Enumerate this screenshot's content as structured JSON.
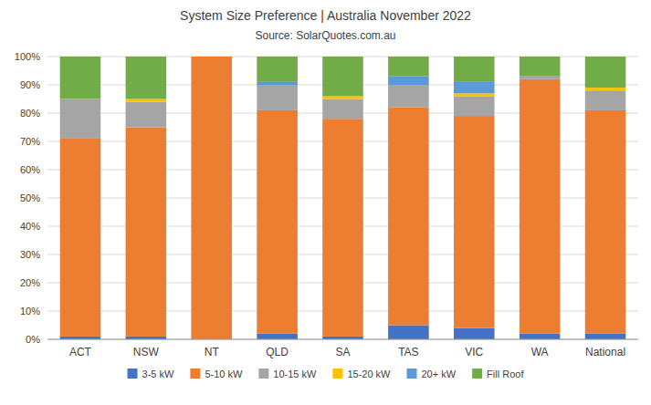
{
  "chart_data": {
    "type": "bar",
    "stacked": true,
    "title": "System Size Preference  |  Australia November 2022",
    "subtitle": "Source: SolarQuotes.com.au",
    "categories": [
      "ACT",
      "NSW",
      "NT",
      "QLD",
      "SA",
      "TAS",
      "VIC",
      "WA",
      "National"
    ],
    "series": [
      {
        "name": "3-5 kW",
        "color": "#4472C4",
        "values": [
          1,
          1,
          0,
          2,
          1,
          5,
          4,
          2,
          2
        ]
      },
      {
        "name": "5-10 kW",
        "color": "#ED7D31",
        "values": [
          70,
          74,
          100,
          79,
          77,
          77,
          75,
          90,
          79
        ]
      },
      {
        "name": "10-15 kW",
        "color": "#A5A5A5",
        "values": [
          14,
          9,
          0,
          9,
          7,
          8,
          7,
          1,
          7
        ]
      },
      {
        "name": "15-20 kW",
        "color": "#FFC000",
        "values": [
          0,
          1,
          0,
          0,
          1,
          0,
          1,
          0,
          1
        ]
      },
      {
        "name": "20+ kW",
        "color": "#5B9BD5",
        "values": [
          0,
          0,
          0,
          1,
          0,
          3,
          4,
          0,
          0
        ]
      },
      {
        "name": "Fill Roof",
        "color": "#70AD47",
        "values": [
          15,
          15,
          0,
          9,
          14,
          7,
          9,
          7,
          11
        ]
      }
    ],
    "ylim": [
      0,
      100
    ],
    "yticks": [
      {
        "value": 0,
        "label": "0%"
      },
      {
        "value": 10,
        "label": "10%"
      },
      {
        "value": 20,
        "label": "20%"
      },
      {
        "value": 30,
        "label": "30%"
      },
      {
        "value": 40,
        "label": "40%"
      },
      {
        "value": 50,
        "label": "50%"
      },
      {
        "value": 60,
        "label": "60%"
      },
      {
        "value": 70,
        "label": "70%"
      },
      {
        "value": 80,
        "label": "80%"
      },
      {
        "value": 90,
        "label": "90%"
      },
      {
        "value": 100,
        "label": "100%"
      }
    ],
    "grid": true,
    "legend": "bottom"
  }
}
